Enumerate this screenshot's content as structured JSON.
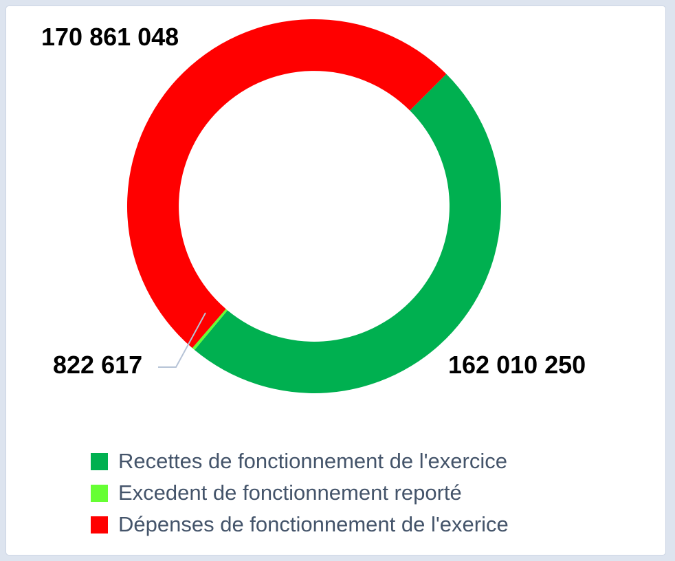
{
  "chart_data": {
    "type": "pie",
    "subtype": "donut",
    "title": "",
    "start_angle_deg": 45,
    "direction": "clockwise",
    "hole_ratio": 0.724,
    "legend_position": "bottom",
    "leader_line_color": "#b6c3d6",
    "segments": [
      {
        "label": "Recettes de fonctionnement de l'exercice",
        "value": 162010250,
        "display_value": "162 010 250",
        "color": "#00B050"
      },
      {
        "label": "Excedent de fonctionnement reporté",
        "value": 822617,
        "display_value": "822 617",
        "color": "#66FF33"
      },
      {
        "label": "Dépenses de fonctionnement de l'exerice",
        "value": 170861048,
        "display_value": "170 861 048",
        "color": "#FF0000"
      }
    ]
  }
}
